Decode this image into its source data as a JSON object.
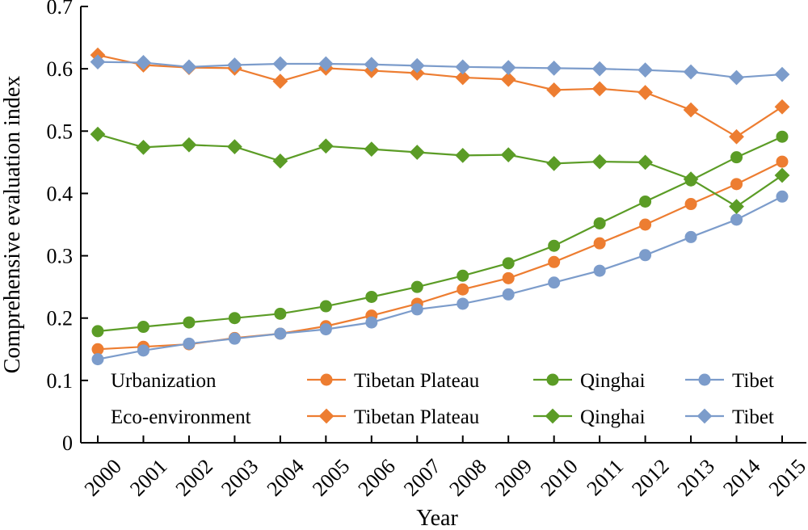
{
  "chart_data": {
    "type": "line",
    "xlabel": "Year",
    "ylabel": "Comprehensive evaluation index",
    "ylim": [
      0,
      0.7
    ],
    "yticks": [
      "0",
      "0.1",
      "0.2",
      "0.3",
      "0.4",
      "0.5",
      "0.6",
      "0.7"
    ],
    "categories": [
      "2000",
      "2001",
      "2002",
      "2003",
      "2004",
      "2005",
      "2006",
      "2007",
      "2008",
      "2009",
      "2010",
      "2011",
      "2012",
      "2013",
      "2014",
      "2015"
    ],
    "grid": false,
    "legend_position": "bottom-left-inside",
    "legend": {
      "groups": [
        {
          "label": "Urbanization",
          "entries": [
            "Tibetan Plateau",
            "Qinghai",
            "Tibet"
          ]
        },
        {
          "label": "Eco-environment",
          "entries": [
            "Tibetan Plateau",
            "Qinghai",
            "Tibet"
          ]
        }
      ]
    },
    "series": [
      {
        "group": "Urbanization",
        "region": "Tibetan Plateau",
        "marker": "circle",
        "color": "#ED7D31",
        "values": [
          0.15,
          0.154,
          0.158,
          0.168,
          0.175,
          0.187,
          0.204,
          0.223,
          0.246,
          0.264,
          0.29,
          0.32,
          0.35,
          0.383,
          0.415,
          0.451
        ]
      },
      {
        "group": "Urbanization",
        "region": "Qinghai",
        "marker": "circle",
        "color": "#5B9C26",
        "values": [
          0.179,
          0.186,
          0.193,
          0.2,
          0.207,
          0.219,
          0.234,
          0.25,
          0.268,
          0.288,
          0.316,
          0.352,
          0.387,
          0.421,
          0.458,
          0.491
        ]
      },
      {
        "group": "Urbanization",
        "region": "Tibet",
        "marker": "circle",
        "color": "#7C9CCB",
        "values": [
          0.134,
          0.148,
          0.159,
          0.167,
          0.175,
          0.182,
          0.193,
          0.214,
          0.223,
          0.238,
          0.257,
          0.276,
          0.301,
          0.33,
          0.358,
          0.395
        ]
      },
      {
        "group": "Eco-environment",
        "region": "Tibetan Plateau",
        "marker": "diamond",
        "color": "#ED7D31",
        "values": [
          0.622,
          0.606,
          0.602,
          0.601,
          0.58,
          0.601,
          0.597,
          0.593,
          0.586,
          0.583,
          0.566,
          0.568,
          0.562,
          0.534,
          0.491,
          0.539
        ]
      },
      {
        "group": "Eco-environment",
        "region": "Qinghai",
        "marker": "diamond",
        "color": "#5B9C26",
        "values": [
          0.495,
          0.474,
          0.478,
          0.475,
          0.452,
          0.476,
          0.471,
          0.466,
          0.461,
          0.462,
          0.448,
          0.451,
          0.45,
          0.423,
          0.379,
          0.429
        ]
      },
      {
        "group": "Eco-environment",
        "region": "Tibet",
        "marker": "diamond",
        "color": "#7C9CCB",
        "values": [
          0.611,
          0.61,
          0.603,
          0.606,
          0.608,
          0.608,
          0.607,
          0.605,
          0.603,
          0.602,
          0.601,
          0.6,
          0.598,
          0.595,
          0.586,
          0.591
        ]
      }
    ]
  }
}
